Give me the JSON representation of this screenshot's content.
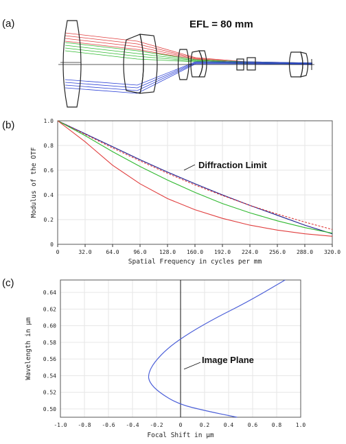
{
  "chart_data": [
    {
      "panel": "(a)",
      "type": "other",
      "annotation": "EFL = 80 mm",
      "ray_colors": [
        "#e03c3c",
        "#2eb82e",
        "#2a3fd6"
      ]
    },
    {
      "panel": "(b)",
      "type": "line",
      "xlabel": "Spatial Frequency in cycles per mm",
      "ylabel": "Modulus of the OTF",
      "xlim": [
        0,
        320
      ],
      "ylim": [
        0,
        1.0
      ],
      "x_ticks": [
        "0",
        "32.0",
        "64.0",
        "96.0",
        "128.0",
        "160.0",
        "192.0",
        "224.0",
        "256.0",
        "288.0",
        "320.0"
      ],
      "y_ticks": [
        "0",
        "0.2",
        "0.4",
        "0.6",
        "0.8",
        "1.0"
      ],
      "grid": true,
      "annotation": "Diffraction Limit",
      "series": [
        {
          "color": "#1a1a8c",
          "style": "solid",
          "x": [
            0,
            32,
            64,
            96,
            128,
            160,
            192,
            224,
            256,
            288,
            320
          ],
          "y": [
            1.0,
            0.895,
            0.79,
            0.685,
            0.585,
            0.49,
            0.4,
            0.315,
            0.235,
            0.155,
            0.085
          ]
        },
        {
          "color": "#e03c3c",
          "style": "dashed",
          "x": [
            0,
            32,
            64,
            96,
            128,
            160,
            192,
            224,
            256,
            288,
            320
          ],
          "y": [
            1.0,
            0.89,
            0.78,
            0.675,
            0.575,
            0.48,
            0.395,
            0.315,
            0.245,
            0.18,
            0.12
          ]
        },
        {
          "color": "#2eb82e",
          "style": "solid",
          "x": [
            0,
            32,
            64,
            96,
            128,
            160,
            192,
            224,
            256,
            288,
            320
          ],
          "y": [
            1.0,
            0.88,
            0.75,
            0.63,
            0.52,
            0.42,
            0.33,
            0.255,
            0.19,
            0.135,
            0.09
          ]
        },
        {
          "color": "#e03c3c",
          "style": "solid",
          "x": [
            0,
            32,
            64,
            96,
            128,
            160,
            192,
            224,
            256,
            288,
            320
          ],
          "y": [
            1.0,
            0.83,
            0.64,
            0.49,
            0.37,
            0.28,
            0.21,
            0.155,
            0.115,
            0.085,
            0.065
          ]
        }
      ]
    },
    {
      "panel": "(c)",
      "type": "line",
      "xlabel": "Focal Shift in μm",
      "ylabel": "Wavelength in μm",
      "xlim": [
        -1.0,
        1.0
      ],
      "ylim": [
        0.49,
        0.655
      ],
      "x_ticks": [
        "-1.0",
        "-0.8",
        "-0.6",
        "-0.4",
        "-0.2",
        "0",
        "0.2",
        "0.4",
        "0.6",
        "0.8",
        "1.0"
      ],
      "y_ticks": [
        "0.50",
        "0.52",
        "0.54",
        "0.56",
        "0.58",
        "0.60",
        "0.62",
        "0.64"
      ],
      "grid": true,
      "annotation": "Image Plane",
      "series": [
        {
          "color": "#4a5ed8",
          "style": "solid",
          "x": [
            0.47,
            0.2,
            -0.02,
            -0.18,
            -0.26,
            -0.27,
            -0.22,
            -0.1,
            0.08,
            0.3,
            0.55,
            0.87
          ],
          "y": [
            0.49,
            0.498,
            0.506,
            0.52,
            0.532,
            0.542,
            0.556,
            0.574,
            0.592,
            0.61,
            0.628,
            0.655
          ]
        }
      ]
    }
  ]
}
